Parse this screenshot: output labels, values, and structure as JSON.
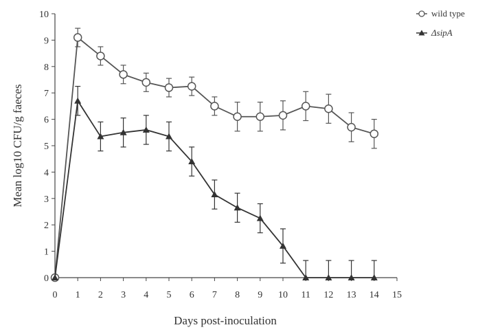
{
  "chart_data": {
    "type": "line",
    "title": "",
    "xlabel": "Days post-inoculation",
    "ylabel": "Mean log10 CFU/g faeces",
    "xlim": [
      0,
      15
    ],
    "ylim": [
      0,
      10
    ],
    "xticks": [
      0,
      1,
      2,
      3,
      4,
      5,
      6,
      7,
      8,
      9,
      10,
      11,
      12,
      13,
      14,
      15
    ],
    "yticks": [
      0,
      1,
      2,
      3,
      4,
      5,
      6,
      7,
      8,
      9,
      10
    ],
    "grid": false,
    "legend_position": "top-right",
    "series": [
      {
        "name": "wild type",
        "marker": "open-circle",
        "color": "#555555",
        "x": [
          0,
          1,
          2,
          3,
          4,
          5,
          6,
          7,
          8,
          9,
          10,
          11,
          12,
          13,
          14
        ],
        "y": [
          0,
          9.1,
          8.4,
          7.7,
          7.4,
          7.2,
          7.25,
          6.5,
          6.1,
          6.1,
          6.15,
          6.5,
          6.4,
          5.7,
          5.45
        ],
        "err": [
          0,
          0.35,
          0.35,
          0.35,
          0.35,
          0.35,
          0.35,
          0.35,
          0.55,
          0.55,
          0.55,
          0.55,
          0.55,
          0.55,
          0.55
        ]
      },
      {
        "name": "ΔsipA",
        "marker": "filled-triangle",
        "color": "#333333",
        "x": [
          0,
          1,
          2,
          3,
          4,
          5,
          6,
          7,
          8,
          9,
          10,
          11,
          12,
          13,
          14
        ],
        "y": [
          0,
          6.7,
          5.35,
          5.5,
          5.6,
          5.35,
          4.4,
          3.15,
          2.65,
          2.25,
          1.2,
          0,
          0,
          0,
          0
        ],
        "err": [
          0,
          0.55,
          0.55,
          0.55,
          0.55,
          0.55,
          0.55,
          0.55,
          0.55,
          0.55,
          0.65,
          0.65,
          0.65,
          0.65,
          0.65
        ]
      }
    ]
  }
}
